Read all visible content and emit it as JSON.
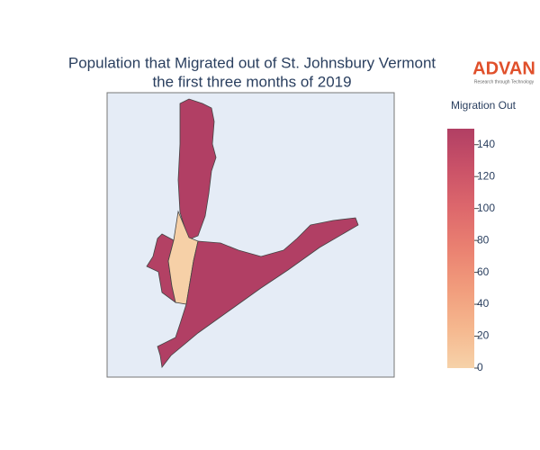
{
  "chart_data": {
    "type": "choropleth",
    "title_lines": [
      "Population that Migrated out of St. Johnsbury Vermont",
      "the first three months of 2019"
    ],
    "logo": {
      "name": "ADVAN",
      "tagline": "Research through Technology"
    },
    "values": [
      150,
      148,
      2,
      150
    ],
    "colorbar": {
      "title": "Migration Out",
      "clim": [
        0,
        150
      ],
      "ticks": [
        0,
        20,
        40,
        60,
        80,
        100,
        120,
        140
      ],
      "colorscale": [
        "#f6d2a9",
        "#f5b78e",
        "#f19c7c",
        "#ea8171",
        "#dd686c",
        "#ca5268",
        "#b13f64"
      ]
    }
  }
}
